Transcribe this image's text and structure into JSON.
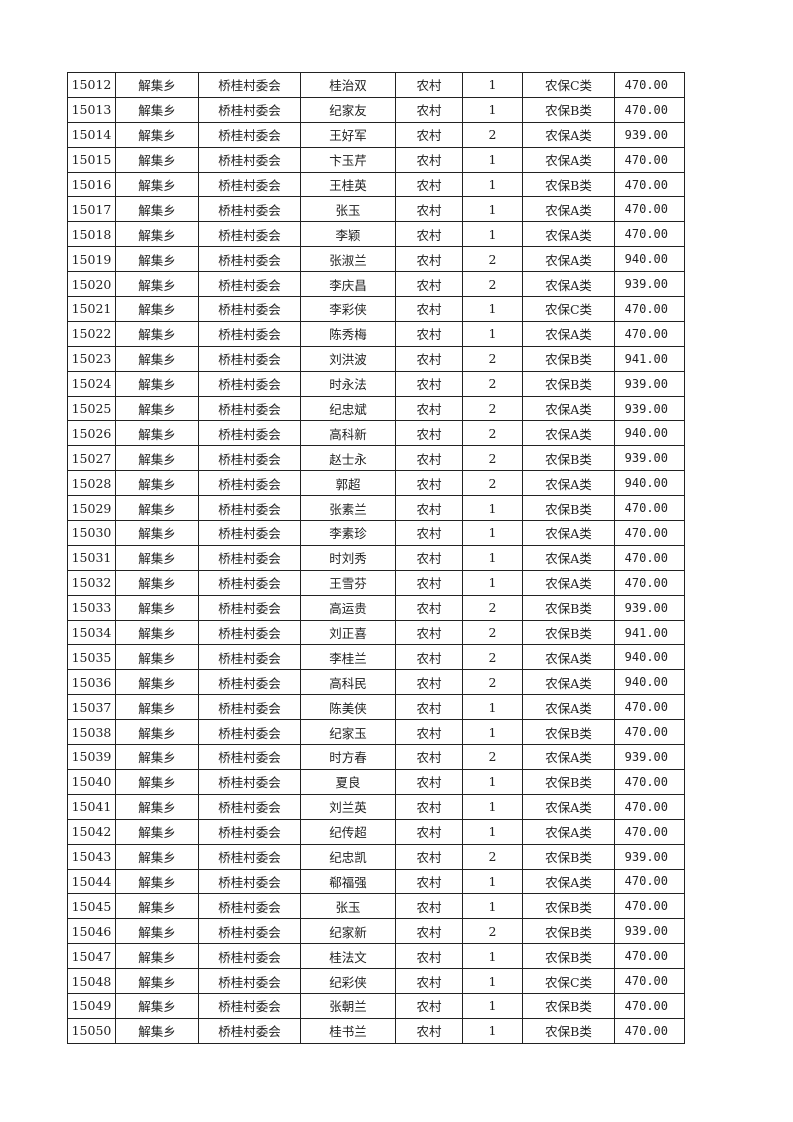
{
  "columns": [
    "id",
    "town",
    "committee",
    "name",
    "area",
    "count",
    "category",
    "amount"
  ],
  "rows": [
    [
      "15012",
      "解集乡",
      "桥桂村委会",
      "桂治双",
      "农村",
      "1",
      "农保C类",
      "470.00"
    ],
    [
      "15013",
      "解集乡",
      "桥桂村委会",
      "纪家友",
      "农村",
      "1",
      "农保B类",
      "470.00"
    ],
    [
      "15014",
      "解集乡",
      "桥桂村委会",
      "王好军",
      "农村",
      "2",
      "农保A类",
      "939.00"
    ],
    [
      "15015",
      "解集乡",
      "桥桂村委会",
      "卞玉芹",
      "农村",
      "1",
      "农保A类",
      "470.00"
    ],
    [
      "15016",
      "解集乡",
      "桥桂村委会",
      "王桂英",
      "农村",
      "1",
      "农保B类",
      "470.00"
    ],
    [
      "15017",
      "解集乡",
      "桥桂村委会",
      "张玉",
      "农村",
      "1",
      "农保A类",
      "470.00"
    ],
    [
      "15018",
      "解集乡",
      "桥桂村委会",
      "李颖",
      "农村",
      "1",
      "农保A类",
      "470.00"
    ],
    [
      "15019",
      "解集乡",
      "桥桂村委会",
      "张淑兰",
      "农村",
      "2",
      "农保A类",
      "940.00"
    ],
    [
      "15020",
      "解集乡",
      "桥桂村委会",
      "李庆昌",
      "农村",
      "2",
      "农保A类",
      "939.00"
    ],
    [
      "15021",
      "解集乡",
      "桥桂村委会",
      "李彩侠",
      "农村",
      "1",
      "农保C类",
      "470.00"
    ],
    [
      "15022",
      "解集乡",
      "桥桂村委会",
      "陈秀梅",
      "农村",
      "1",
      "农保A类",
      "470.00"
    ],
    [
      "15023",
      "解集乡",
      "桥桂村委会",
      "刘洪波",
      "农村",
      "2",
      "农保B类",
      "941.00"
    ],
    [
      "15024",
      "解集乡",
      "桥桂村委会",
      "时永法",
      "农村",
      "2",
      "农保B类",
      "939.00"
    ],
    [
      "15025",
      "解集乡",
      "桥桂村委会",
      "纪忠斌",
      "农村",
      "2",
      "农保A类",
      "939.00"
    ],
    [
      "15026",
      "解集乡",
      "桥桂村委会",
      "高科新",
      "农村",
      "2",
      "农保A类",
      "940.00"
    ],
    [
      "15027",
      "解集乡",
      "桥桂村委会",
      "赵士永",
      "农村",
      "2",
      "农保B类",
      "939.00"
    ],
    [
      "15028",
      "解集乡",
      "桥桂村委会",
      "郭超",
      "农村",
      "2",
      "农保A类",
      "940.00"
    ],
    [
      "15029",
      "解集乡",
      "桥桂村委会",
      "张素兰",
      "农村",
      "1",
      "农保B类",
      "470.00"
    ],
    [
      "15030",
      "解集乡",
      "桥桂村委会",
      "李素珍",
      "农村",
      "1",
      "农保A类",
      "470.00"
    ],
    [
      "15031",
      "解集乡",
      "桥桂村委会",
      "时刘秀",
      "农村",
      "1",
      "农保A类",
      "470.00"
    ],
    [
      "15032",
      "解集乡",
      "桥桂村委会",
      "王雪芬",
      "农村",
      "1",
      "农保A类",
      "470.00"
    ],
    [
      "15033",
      "解集乡",
      "桥桂村委会",
      "高运贵",
      "农村",
      "2",
      "农保B类",
      "939.00"
    ],
    [
      "15034",
      "解集乡",
      "桥桂村委会",
      "刘正喜",
      "农村",
      "2",
      "农保B类",
      "941.00"
    ],
    [
      "15035",
      "解集乡",
      "桥桂村委会",
      "李桂兰",
      "农村",
      "2",
      "农保A类",
      "940.00"
    ],
    [
      "15036",
      "解集乡",
      "桥桂村委会",
      "高科民",
      "农村",
      "2",
      "农保A类",
      "940.00"
    ],
    [
      "15037",
      "解集乡",
      "桥桂村委会",
      "陈美侠",
      "农村",
      "1",
      "农保A类",
      "470.00"
    ],
    [
      "15038",
      "解集乡",
      "桥桂村委会",
      "纪家玉",
      "农村",
      "1",
      "农保B类",
      "470.00"
    ],
    [
      "15039",
      "解集乡",
      "桥桂村委会",
      "时方春",
      "农村",
      "2",
      "农保A类",
      "939.00"
    ],
    [
      "15040",
      "解集乡",
      "桥桂村委会",
      "夏良",
      "农村",
      "1",
      "农保B类",
      "470.00"
    ],
    [
      "15041",
      "解集乡",
      "桥桂村委会",
      "刘兰英",
      "农村",
      "1",
      "农保A类",
      "470.00"
    ],
    [
      "15042",
      "解集乡",
      "桥桂村委会",
      "纪传超",
      "农村",
      "1",
      "农保A类",
      "470.00"
    ],
    [
      "15043",
      "解集乡",
      "桥桂村委会",
      "纪忠凯",
      "农村",
      "2",
      "农保B类",
      "939.00"
    ],
    [
      "15044",
      "解集乡",
      "桥桂村委会",
      "郗福强",
      "农村",
      "1",
      "农保A类",
      "470.00"
    ],
    [
      "15045",
      "解集乡",
      "桥桂村委会",
      "张玉",
      "农村",
      "1",
      "农保B类",
      "470.00"
    ],
    [
      "15046",
      "解集乡",
      "桥桂村委会",
      "纪家新",
      "农村",
      "2",
      "农保B类",
      "939.00"
    ],
    [
      "15047",
      "解集乡",
      "桥桂村委会",
      "桂法文",
      "农村",
      "1",
      "农保B类",
      "470.00"
    ],
    [
      "15048",
      "解集乡",
      "桥桂村委会",
      "纪彩侠",
      "农村",
      "1",
      "农保C类",
      "470.00"
    ],
    [
      "15049",
      "解集乡",
      "桥桂村委会",
      "张朝兰",
      "农村",
      "1",
      "农保B类",
      "470.00"
    ],
    [
      "15050",
      "解集乡",
      "桥桂村委会",
      "桂书兰",
      "农村",
      "1",
      "农保B类",
      "470.00"
    ]
  ]
}
